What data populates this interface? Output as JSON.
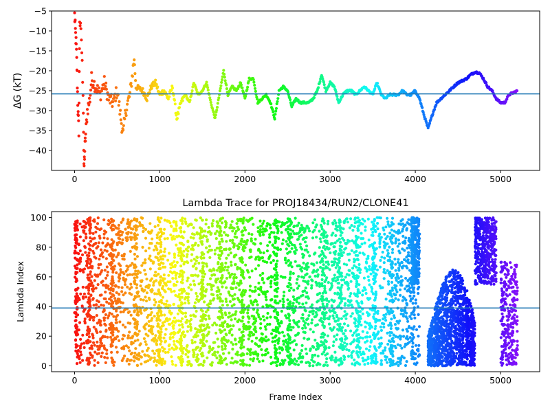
{
  "chart_data": [
    {
      "type": "scatter",
      "title": "",
      "xlabel": "",
      "ylabel": "ΔG (kT)",
      "xlim": [
        -270,
        5460
      ],
      "ylim": [
        -45,
        -5
      ],
      "xticks": [
        0,
        1000,
        2000,
        3000,
        4000,
        5000
      ],
      "yticks": [
        -40,
        -35,
        -30,
        -25,
        -20,
        -15,
        -10,
        -5
      ],
      "hline": -25.8,
      "colormap": "rainbow (colored by frame index, red at 0 → violet at 5200)",
      "trace_points": [
        [
          0,
          -6
        ],
        [
          10,
          -10
        ],
        [
          20,
          -14
        ],
        [
          30,
          -21
        ],
        [
          40,
          -30
        ],
        [
          50,
          -35
        ],
        [
          60,
          -7
        ],
        [
          80,
          -12
        ],
        [
          100,
          -25
        ],
        [
          110,
          -45
        ],
        [
          120,
          -40
        ],
        [
          130,
          -36
        ],
        [
          150,
          -30
        ],
        [
          180,
          -27
        ],
        [
          200,
          -22
        ],
        [
          250,
          -24
        ],
        [
          300,
          -26
        ],
        [
          350,
          -23
        ],
        [
          400,
          -27
        ],
        [
          450,
          -28
        ],
        [
          500,
          -25
        ],
        [
          550,
          -33
        ],
        [
          570,
          -36
        ],
        [
          600,
          -30
        ],
        [
          650,
          -26
        ],
        [
          700,
          -17
        ],
        [
          720,
          -24
        ],
        [
          800,
          -25
        ],
        [
          850,
          -27
        ],
        [
          900,
          -24
        ],
        [
          950,
          -23
        ],
        [
          1000,
          -26
        ],
        [
          1050,
          -25
        ],
        [
          1100,
          -27
        ],
        [
          1150,
          -24
        ],
        [
          1200,
          -32
        ],
        [
          1250,
          -28
        ],
        [
          1300,
          -26
        ],
        [
          1350,
          -28
        ],
        [
          1400,
          -23
        ],
        [
          1450,
          -26
        ],
        [
          1500,
          -25
        ],
        [
          1550,
          -23
        ],
        [
          1600,
          -28
        ],
        [
          1650,
          -32
        ],
        [
          1700,
          -26
        ],
        [
          1750,
          -20
        ],
        [
          1800,
          -26
        ],
        [
          1850,
          -24
        ],
        [
          1900,
          -25
        ],
        [
          1950,
          -23
        ],
        [
          2000,
          -27
        ],
        [
          2050,
          -22
        ],
        [
          2100,
          -22
        ],
        [
          2150,
          -28
        ],
        [
          2200,
          -27
        ],
        [
          2250,
          -26
        ],
        [
          2300,
          -28
        ],
        [
          2350,
          -32
        ],
        [
          2400,
          -25
        ],
        [
          2450,
          -24
        ],
        [
          2500,
          -25
        ],
        [
          2550,
          -29
        ],
        [
          2600,
          -27
        ],
        [
          2650,
          -28
        ],
        [
          2700,
          -28
        ],
        [
          2750,
          -28
        ],
        [
          2800,
          -27
        ],
        [
          2850,
          -25
        ],
        [
          2900,
          -21
        ],
        [
          2950,
          -25
        ],
        [
          3000,
          -23
        ],
        [
          3050,
          -24
        ],
        [
          3100,
          -28
        ],
        [
          3150,
          -26
        ],
        [
          3200,
          -25
        ],
        [
          3250,
          -25
        ],
        [
          3300,
          -26
        ],
        [
          3350,
          -25
        ],
        [
          3400,
          -24
        ],
        [
          3450,
          -25
        ],
        [
          3500,
          -26
        ],
        [
          3550,
          -23
        ],
        [
          3600,
          -26
        ],
        [
          3650,
          -27
        ],
        [
          3700,
          -26
        ],
        [
          3750,
          -26
        ],
        [
          3800,
          -26
        ],
        [
          3850,
          -25
        ],
        [
          3900,
          -26
        ],
        [
          3950,
          -26
        ],
        [
          4000,
          -25
        ],
        [
          4050,
          -27
        ],
        [
          4100,
          -31
        ],
        [
          4150,
          -34.5
        ],
        [
          4200,
          -31
        ],
        [
          4250,
          -28
        ],
        [
          4300,
          -27
        ],
        [
          4350,
          -26
        ],
        [
          4400,
          -25
        ],
        [
          4450,
          -24
        ],
        [
          4500,
          -23
        ],
        [
          4550,
          -22.5
        ],
        [
          4600,
          -22
        ],
        [
          4650,
          -21
        ],
        [
          4700,
          -20.3
        ],
        [
          4750,
          -20.5
        ],
        [
          4800,
          -22
        ],
        [
          4850,
          -24
        ],
        [
          4900,
          -25
        ],
        [
          4950,
          -27
        ],
        [
          5000,
          -28
        ],
        [
          5050,
          -28
        ],
        [
          5100,
          -26
        ],
        [
          5150,
          -25.5
        ],
        [
          5200,
          -25
        ]
      ]
    },
    {
      "type": "scatter",
      "title": "Lambda Trace for PROJ18434/RUN2/CLONE41",
      "xlabel": "Frame Index",
      "ylabel": "Lambda Index",
      "xlim": [
        -270,
        5460
      ],
      "ylim": [
        -4,
        104
      ],
      "xticks": [
        0,
        1000,
        2000,
        3000,
        4000,
        5000
      ],
      "yticks": [
        0,
        20,
        40,
        60,
        80,
        100
      ],
      "hline": 39,
      "colormap": "rainbow (colored by frame index, red at 0 → violet at 5200)",
      "point_spread": "dense points spanning lambda 0–100 across frames 0–5200, with a gap near frame 4100, a dense 0–60 cluster from 4150–4700 and a 60–100 cluster from 4700–4950"
    }
  ]
}
